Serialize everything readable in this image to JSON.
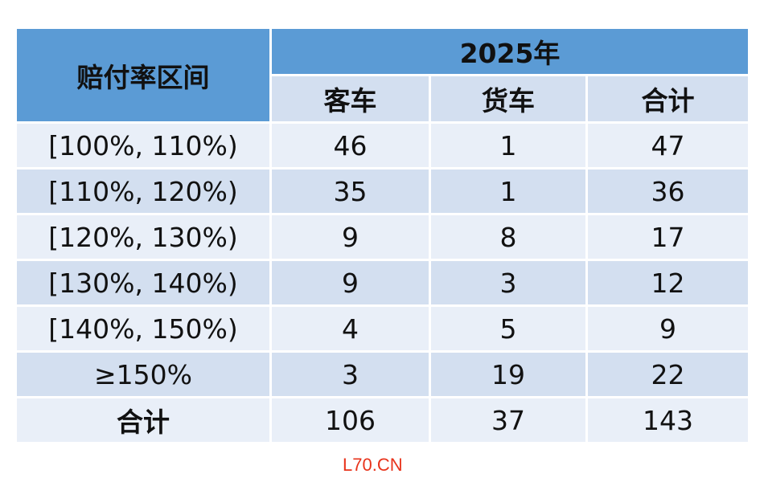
{
  "table": {
    "header_label": "赔付率区间",
    "year_label": "2025年",
    "columns": [
      "客车",
      "货车",
      "合计"
    ],
    "rows": [
      {
        "range": "[100%, 110%)",
        "bus": "46",
        "truck": "1",
        "total": "47"
      },
      {
        "range": "[110%, 120%)",
        "bus": "35",
        "truck": "1",
        "total": "36"
      },
      {
        "range": "[120%, 130%)",
        "bus": "9",
        "truck": "8",
        "total": "17"
      },
      {
        "range": "[130%, 140%)",
        "bus": "9",
        "truck": "3",
        "total": "12"
      },
      {
        "range": "[140%, 150%)",
        "bus": "4",
        "truck": "5",
        "total": "9"
      },
      {
        "range": "≥150%",
        "bus": "3",
        "truck": "19",
        "total": "22"
      }
    ],
    "total_row": {
      "label": "合计",
      "bus": "106",
      "truck": "37",
      "total": "143"
    }
  },
  "watermark": "L70.CN",
  "colors": {
    "header": "#5b9bd5",
    "row_light": "#e9eff8",
    "row_dark": "#d3dff0",
    "watermark": "#e8331b"
  }
}
